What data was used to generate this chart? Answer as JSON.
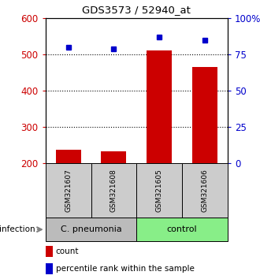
{
  "title": "GDS3573 / 52940_at",
  "samples": [
    "GSM321607",
    "GSM321608",
    "GSM321605",
    "GSM321606"
  ],
  "counts": [
    237,
    232,
    510,
    465
  ],
  "percentiles": [
    80,
    79,
    87,
    85
  ],
  "ylim_left": [
    200,
    600
  ],
  "ylim_right": [
    0,
    100
  ],
  "yticks_left": [
    200,
    300,
    400,
    500,
    600
  ],
  "yticks_right": [
    0,
    25,
    50,
    75,
    100
  ],
  "ytick_labels_right": [
    "0",
    "25",
    "50",
    "75",
    "100%"
  ],
  "grid_lines": [
    300,
    400,
    500
  ],
  "bar_color": "#cc0000",
  "dot_color": "#0000cc",
  "groups": [
    {
      "label": "C. pneumonia",
      "color": "#bbbbbb",
      "samples": [
        0,
        1
      ]
    },
    {
      "label": "control",
      "color": "#88ee88",
      "samples": [
        2,
        3
      ]
    }
  ],
  "sample_box_color": "#cccccc",
  "infection_label": "infection",
  "legend_count_label": "count",
  "legend_percentile_label": "percentile rank within the sample",
  "left_axis_color": "#cc0000",
  "right_axis_color": "#0000cc"
}
